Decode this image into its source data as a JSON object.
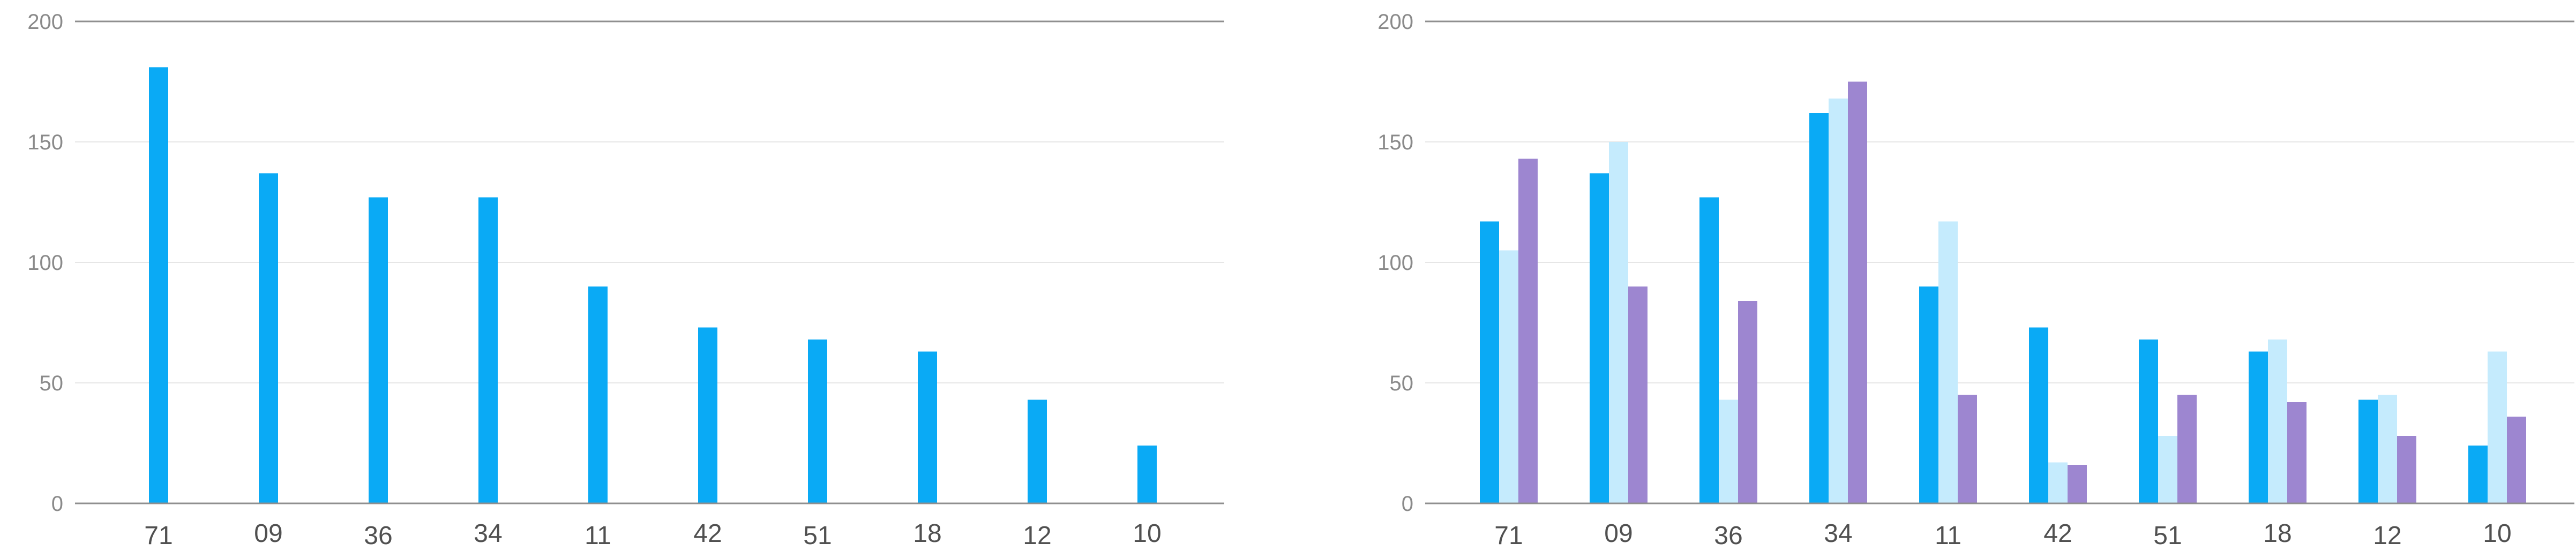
{
  "colors": {
    "series_blue": "#0aaaf5",
    "series_light_blue": "#c5ebfd",
    "series_purple": "#9d86d0",
    "axis_line": "#8f8f8f",
    "grid_line": "#e6e6e6"
  },
  "chart_data": [
    {
      "type": "bar",
      "title": "",
      "xlabel": "",
      "ylabel": "",
      "ylim": [
        0,
        200
      ],
      "yticks": [
        0,
        50,
        100,
        150,
        200
      ],
      "categories": [
        "71",
        "09",
        "36",
        "34",
        "11",
        "42",
        "51",
        "18",
        "12",
        "10"
      ],
      "series": [
        {
          "values": [
            181,
            137,
            127,
            127,
            90,
            73,
            68,
            63,
            43,
            24
          ]
        }
      ],
      "grid": true,
      "legend": "none"
    },
    {
      "type": "bar",
      "title": "",
      "xlabel": "",
      "ylabel": "",
      "ylim": [
        0,
        200
      ],
      "yticks": [
        0,
        50,
        100,
        150,
        200
      ],
      "categories": [
        "71",
        "09",
        "36",
        "34",
        "11",
        "42",
        "51",
        "18",
        "12",
        "10"
      ],
      "series": [
        {
          "values": [
            117,
            137,
            127,
            162,
            90,
            73,
            68,
            63,
            43,
            24
          ]
        },
        {
          "values": [
            105,
            150,
            43,
            168,
            117,
            17,
            28,
            68,
            45,
            63
          ]
        },
        {
          "values": [
            143,
            90,
            84,
            175,
            45,
            16,
            45,
            42,
            28,
            36
          ]
        }
      ],
      "grid": true,
      "legend": "none"
    }
  ]
}
